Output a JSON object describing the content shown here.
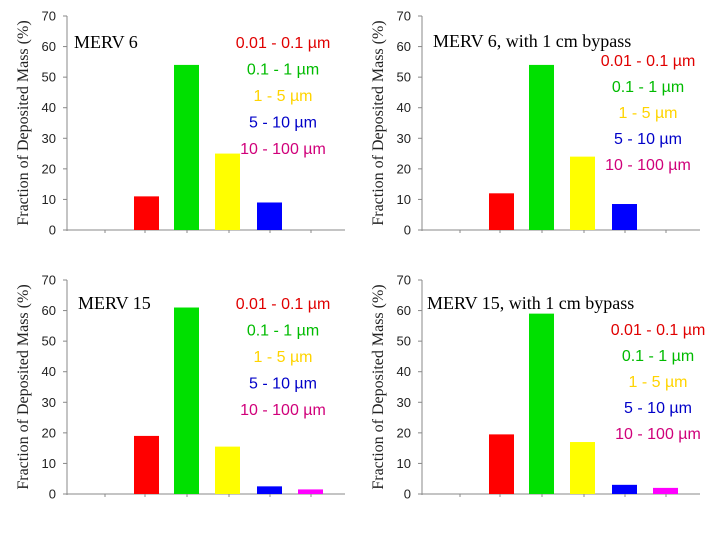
{
  "chart_data": [
    {
      "type": "bar",
      "title": "MERV 6",
      "ylabel": "Fraction of Deposited Mass (%)",
      "ylim": [
        0,
        70
      ],
      "yticks": [
        "0",
        "10",
        "20",
        "30",
        "40",
        "50",
        "60",
        "70"
      ],
      "series": [
        {
          "name": "0.01 - 0.1 µm",
          "color": "#ff0000",
          "value": 11
        },
        {
          "name": "0.1 - 1 µm",
          "color": "#00e000",
          "value": 54
        },
        {
          "name": "1 - 5 µm",
          "color": "#ffff00",
          "value": 25
        },
        {
          "name": "5 - 10 µm",
          "color": "#0000ff",
          "value": 9
        },
        {
          "name": "10 - 100 µm",
          "color": "#ff00ff",
          "value": 0
        }
      ]
    },
    {
      "type": "bar",
      "title": "MERV 6, with 1 cm bypass",
      "ylabel": "Fraction of Deposited Mass (%)",
      "ylim": [
        0,
        70
      ],
      "yticks": [
        "0",
        "10",
        "20",
        "30",
        "40",
        "50",
        "60",
        "70"
      ],
      "series": [
        {
          "name": "0.01 - 0.1 µm",
          "color": "#ff0000",
          "value": 12
        },
        {
          "name": "0.1 - 1 µm",
          "color": "#00e000",
          "value": 54
        },
        {
          "name": "1 - 5 µm",
          "color": "#ffff00",
          "value": 24
        },
        {
          "name": "5 - 10 µm",
          "color": "#0000ff",
          "value": 8.5
        },
        {
          "name": "10 - 100 µm",
          "color": "#ff00ff",
          "value": 0
        }
      ]
    },
    {
      "type": "bar",
      "title": "MERV 15",
      "ylabel": "Fraction of Deposited Mass (%)",
      "ylim": [
        0,
        70
      ],
      "yticks": [
        "0",
        "10",
        "20",
        "30",
        "40",
        "50",
        "60",
        "70"
      ],
      "series": [
        {
          "name": "0.01 - 0.1 µm",
          "color": "#ff0000",
          "value": 19
        },
        {
          "name": "0.1 - 1 µm",
          "color": "#00e000",
          "value": 61
        },
        {
          "name": "1 - 5 µm",
          "color": "#ffff00",
          "value": 15.5
        },
        {
          "name": "5 - 10 µm",
          "color": "#0000ff",
          "value": 2.5
        },
        {
          "name": "10 - 100 µm",
          "color": "#ff00ff",
          "value": 1.5
        }
      ]
    },
    {
      "type": "bar",
      "title": "MERV 15, with 1 cm bypass",
      "ylabel": "Fraction of Deposited Mass (%)",
      "ylim": [
        0,
        70
      ],
      "yticks": [
        "0",
        "10",
        "20",
        "30",
        "40",
        "50",
        "60",
        "70"
      ],
      "series": [
        {
          "name": "0.01 - 0.1 µm",
          "color": "#ff0000",
          "value": 19.5
        },
        {
          "name": "0.1 - 1 µm",
          "color": "#00e000",
          "value": 59
        },
        {
          "name": "1 - 5 µm",
          "color": "#ffff00",
          "value": 17
        },
        {
          "name": "5 - 10 µm",
          "color": "#0000ff",
          "value": 3
        },
        {
          "name": "10 - 100 µm",
          "color": "#ff00ff",
          "value": 2
        }
      ]
    }
  ],
  "legend_colors": {
    "0.01 - 0.1 µm": "#e00000",
    "0.1 - 1 µm": "#00bb00",
    "1 - 5 µm": "#ffd400",
    "5 - 10 µm": "#0000c8",
    "10 - 100 µm": "#d0007a"
  }
}
